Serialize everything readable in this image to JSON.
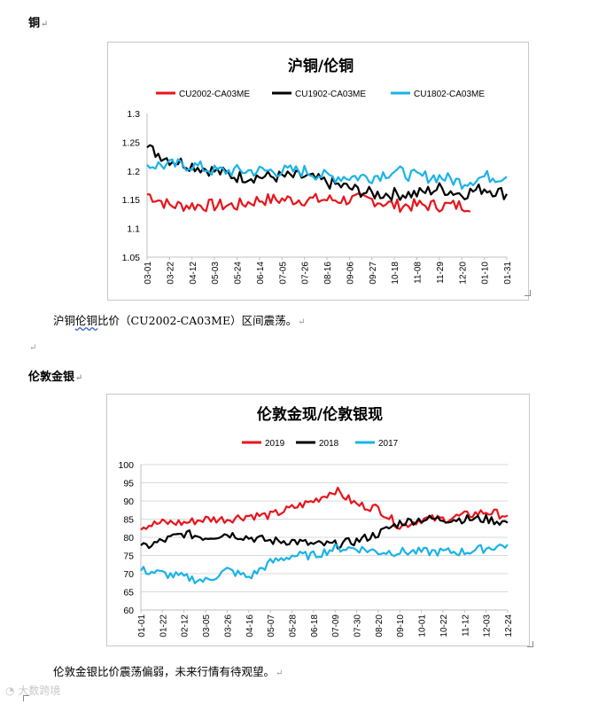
{
  "section1": {
    "heading": "铜",
    "caption_pre": "沪铜",
    "caption_squiggle": "伦铜",
    "caption_post": "比价（CU2002-CA03ME）区间震荡。"
  },
  "section2": {
    "heading": "伦敦金银",
    "caption": "伦敦金银比价震荡偏弱，未来行情有待观望。"
  },
  "para_mark": "↵",
  "watermark": "大数跨境",
  "chart_data": [
    {
      "type": "line",
      "title": "沪铜/伦铜",
      "ylim": [
        1.05,
        1.3
      ],
      "yticks": [
        1.05,
        1.1,
        1.15,
        1.2,
        1.25,
        1.3
      ],
      "categories": [
        "03-01",
        "03-22",
        "04-12",
        "05-03",
        "05-24",
        "06-14",
        "07-05",
        "07-26",
        "08-16",
        "09-06",
        "09-27",
        "10-18",
        "11-08",
        "11-29",
        "12-20",
        "01-10",
        "01-31"
      ],
      "series": [
        {
          "name": "CU2002-CA03ME",
          "color": "#e8141c",
          "values": [
            1.16,
            1.14,
            1.14,
            1.14,
            1.14,
            1.15,
            1.15,
            1.15,
            1.15,
            1.15,
            1.15,
            1.14,
            1.14,
            1.14,
            1.14,
            null,
            null
          ]
        },
        {
          "name": "CU1902-CA03ME",
          "color": "#000000",
          "values": [
            1.24,
            1.22,
            1.21,
            1.2,
            1.19,
            1.19,
            1.19,
            1.19,
            1.18,
            1.17,
            1.16,
            1.16,
            1.16,
            1.17,
            1.16,
            1.17,
            1.16
          ]
        },
        {
          "name": "CU1802-CA03ME",
          "color": "#1ab3e6",
          "values": [
            1.21,
            1.21,
            1.21,
            1.2,
            1.2,
            1.2,
            1.2,
            1.2,
            1.19,
            1.19,
            1.19,
            1.2,
            1.19,
            1.19,
            1.18,
            1.19,
            1.19
          ]
        }
      ]
    },
    {
      "type": "line",
      "title": "伦敦金现/伦敦银现",
      "ylim": [
        60,
        100
      ],
      "yticks": [
        60,
        65,
        70,
        75,
        80,
        85,
        90,
        95,
        100
      ],
      "categories": [
        "01-01",
        "01-22",
        "02-12",
        "03-05",
        "03-26",
        "04-16",
        "05-07",
        "05-28",
        "06-18",
        "07-09",
        "07-30",
        "08-20",
        "09-10",
        "10-01",
        "10-22",
        "11-12",
        "12-03",
        "12-24"
      ],
      "series": [
        {
          "name": "2019",
          "color": "#e8141c",
          "values": [
            83,
            84,
            84,
            85,
            85,
            86,
            86,
            88,
            90,
            93,
            89,
            88,
            83,
            85,
            85,
            86,
            87,
            86
          ]
        },
        {
          "name": "2018",
          "color": "#000000",
          "values": [
            77,
            79,
            81,
            80,
            81,
            80,
            79,
            79,
            78,
            78,
            79,
            81,
            84,
            85,
            85,
            85,
            85,
            84
          ]
        },
        {
          "name": "2017",
          "color": "#1ab3e6",
          "values": [
            71,
            70,
            69,
            68,
            71,
            69,
            73,
            75,
            75,
            77,
            77,
            76,
            76,
            76,
            76,
            76,
            77,
            78
          ]
        }
      ]
    }
  ]
}
